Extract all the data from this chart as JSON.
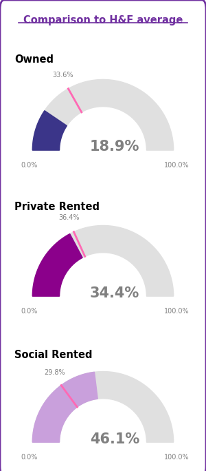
{
  "title": "Comparison to H&F average",
  "title_color": "#7030A0",
  "background_color": "#ffffff",
  "border_color": "#7030A0",
  "categories": [
    "Owned",
    "Private Rented",
    "Social Rented"
  ],
  "ward_values": [
    18.9,
    34.4,
    46.1
  ],
  "hf_averages": [
    33.6,
    36.4,
    29.8
  ],
  "ward_colors": [
    "#3B3589",
    "#8B008B",
    "#C9A0DC"
  ],
  "hf_marker_color": "#FF69B4",
  "bg_arc_color": "#E0E0E0",
  "label_color": "#808080",
  "value_color": "#808080",
  "category_color": "#000000",
  "gauge_min": 0.0,
  "gauge_max": 100.0
}
